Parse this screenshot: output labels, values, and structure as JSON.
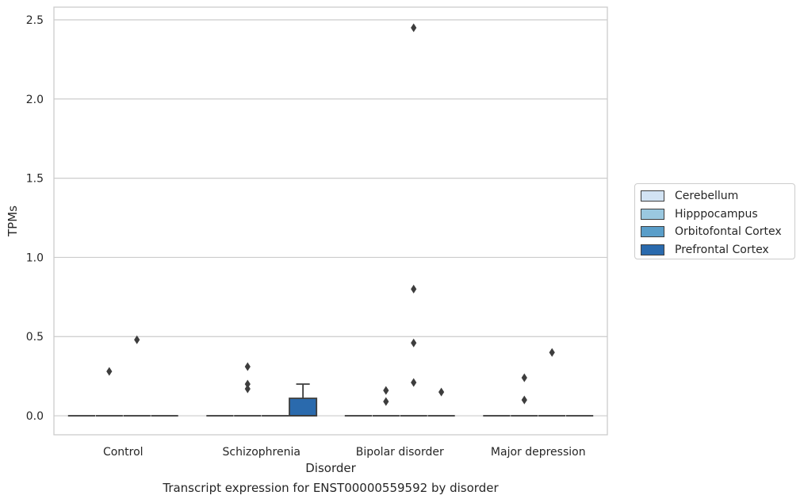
{
  "chart_data": {
    "type": "box",
    "xlabel": "Disorder",
    "ylabel": "TPMs",
    "caption": "Transcript expression for ENST00000559592 by disorder",
    "categories": [
      "Control",
      "Schizophrenia",
      "Bipolar disorder",
      "Major depression"
    ],
    "ylim": [
      -0.12,
      2.58
    ],
    "yticks": [
      0.0,
      0.5,
      1.0,
      1.5,
      2.0,
      2.5
    ],
    "grid": true,
    "legend": {
      "placement": "right",
      "entries": [
        "Cerebellum",
        "Hipppocampus",
        "Orbitofontal Cortex",
        "Prefrontal Cortex"
      ]
    },
    "series": [
      {
        "name": "Cerebellum",
        "color": "#d2e3f3",
        "boxes": [
          {
            "category": "Control",
            "q1": 0,
            "median": 0,
            "q3": 0,
            "whisker_low": 0,
            "whisker_high": 0,
            "outliers": []
          },
          {
            "category": "Schizophrenia",
            "q1": 0,
            "median": 0,
            "q3": 0,
            "whisker_low": 0,
            "whisker_high": 0,
            "outliers": []
          },
          {
            "category": "Bipolar disorder",
            "q1": 0,
            "median": 0,
            "q3": 0,
            "whisker_low": 0,
            "whisker_high": 0,
            "outliers": []
          },
          {
            "category": "Major depression",
            "q1": 0,
            "median": 0,
            "q3": 0,
            "whisker_low": 0,
            "whisker_high": 0,
            "outliers": []
          }
        ]
      },
      {
        "name": "Hipppocampus",
        "color": "#9ac8e0",
        "boxes": [
          {
            "category": "Control",
            "q1": 0,
            "median": 0,
            "q3": 0,
            "whisker_low": 0,
            "whisker_high": 0,
            "outliers": [
              0.28
            ]
          },
          {
            "category": "Schizophrenia",
            "q1": 0,
            "median": 0,
            "q3": 0,
            "whisker_low": 0,
            "whisker_high": 0,
            "outliers": [
              0.31,
              0.2,
              0.17
            ]
          },
          {
            "category": "Bipolar disorder",
            "q1": 0,
            "median": 0,
            "q3": 0,
            "whisker_low": 0,
            "whisker_high": 0,
            "outliers": [
              0.16,
              0.09
            ]
          },
          {
            "category": "Major depression",
            "q1": 0,
            "median": 0,
            "q3": 0,
            "whisker_low": 0,
            "whisker_high": 0,
            "outliers": [
              0.24,
              0.1
            ]
          }
        ]
      },
      {
        "name": "Orbitofontal Cortex",
        "color": "#5a9ec9",
        "boxes": [
          {
            "category": "Control",
            "q1": 0,
            "median": 0,
            "q3": 0,
            "whisker_low": 0,
            "whisker_high": 0,
            "outliers": [
              0.48
            ]
          },
          {
            "category": "Schizophrenia",
            "q1": 0,
            "median": 0,
            "q3": 0,
            "whisker_low": 0,
            "whisker_high": 0,
            "outliers": []
          },
          {
            "category": "Bipolar disorder",
            "q1": 0,
            "median": 0,
            "q3": 0,
            "whisker_low": 0,
            "whisker_high": 0,
            "outliers": [
              2.45,
              0.8,
              0.46,
              0.21
            ]
          },
          {
            "category": "Major depression",
            "q1": 0,
            "median": 0,
            "q3": 0,
            "whisker_low": 0,
            "whisker_high": 0,
            "outliers": [
              0.4
            ]
          }
        ]
      },
      {
        "name": "Prefrontal Cortex",
        "color": "#2a6aad",
        "boxes": [
          {
            "category": "Control",
            "q1": 0,
            "median": 0,
            "q3": 0,
            "whisker_low": 0,
            "whisker_high": 0,
            "outliers": []
          },
          {
            "category": "Schizophrenia",
            "q1": 0,
            "median": 0,
            "q3": 0.11,
            "whisker_low": 0,
            "whisker_high": 0.2,
            "outliers": []
          },
          {
            "category": "Bipolar disorder",
            "q1": 0,
            "median": 0,
            "q3": 0,
            "whisker_low": 0,
            "whisker_high": 0,
            "outliers": [
              0.15
            ]
          },
          {
            "category": "Major depression",
            "q1": 0,
            "median": 0,
            "q3": 0,
            "whisker_low": 0,
            "whisker_high": 0,
            "outliers": []
          }
        ]
      }
    ]
  }
}
